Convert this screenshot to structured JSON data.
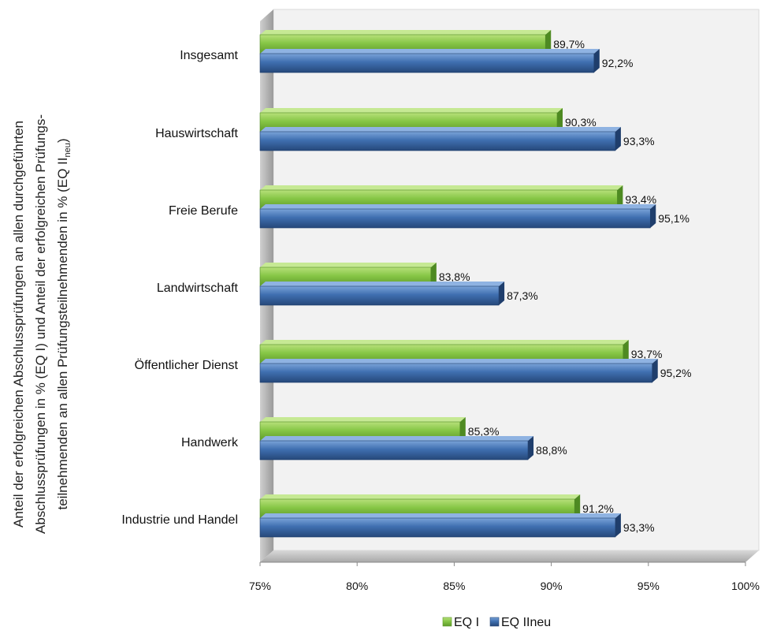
{
  "chart_data": {
    "type": "bar",
    "orientation": "horizontal",
    "categories": [
      "Insgesamt",
      "Hauswirtschaft",
      "Freie Berufe",
      "Landwirtschaft",
      "Öffentlicher Dienst",
      "Handwerk",
      "Industrie und Handel"
    ],
    "series": [
      {
        "name": "EQ I",
        "values": [
          89.7,
          90.3,
          93.4,
          83.8,
          93.7,
          85.3,
          91.2
        ],
        "labels": [
          "89,7%",
          "90,3%",
          "93,4%",
          "83,8%",
          "93,7%",
          "85,3%",
          "91,2%"
        ],
        "color": "#7fc241"
      },
      {
        "name": "EQ IIneu",
        "values": [
          92.2,
          93.3,
          95.1,
          87.3,
          95.2,
          88.8,
          93.3
        ],
        "labels": [
          "92,2%",
          "93,3%",
          "95,1%",
          "87,3%",
          "95,2%",
          "88,8%",
          "93,3%"
        ],
        "color": "#3f6fb0"
      }
    ],
    "xlim": [
      75,
      100
    ],
    "xticks": [
      "75%",
      "80%",
      "85%",
      "90%",
      "95%",
      "100%"
    ],
    "ylabel_lines": [
      "Anteil der erfolgreichen Abschlussprüfungen an allen durchgeführten",
      "Abschlussprüfungen in % (EQ I) und Anteil der erfolgreichen Prüfungs-",
      "teilnehmenden an allen Prüfungsteilnehmenden in % (EQ II",
      "neu",
      ")"
    ],
    "legend": {
      "position": "bottom",
      "entries": [
        "EQ I",
        "EQ IIneu"
      ]
    },
    "grid": false
  }
}
